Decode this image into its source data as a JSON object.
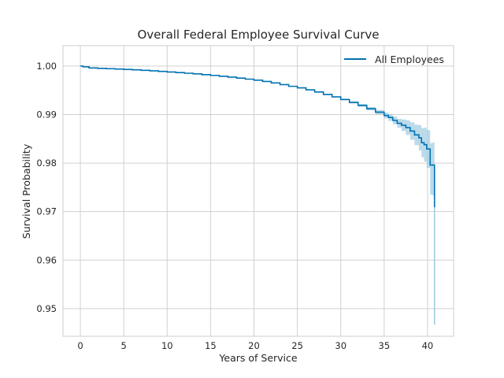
{
  "chart_data": {
    "type": "line",
    "title": "Overall Federal Employee Survival Curve",
    "xlabel": "Years of Service",
    "ylabel": "Survival Probability",
    "xlim": [
      -2,
      43
    ],
    "ylim": [
      0.9443,
      1.0042
    ],
    "xticks": [
      0,
      5,
      10,
      15,
      20,
      25,
      30,
      35,
      40
    ],
    "yticks": [
      0.95,
      0.96,
      0.97,
      0.98,
      0.99,
      1.0
    ],
    "ytick_labels": [
      "0.95",
      "0.96",
      "0.97",
      "0.98",
      "0.99",
      "1.00"
    ],
    "grid": true,
    "legend_position": "top-right",
    "colors": {
      "line": "#0072b2",
      "band": "#9ecae1",
      "grid": "#d0d0d0",
      "spine": "#cccccc",
      "text": "#262626"
    },
    "series": [
      {
        "name": "All Employees",
        "x": [
          0,
          0.3,
          1,
          2,
          3,
          4,
          5,
          6,
          7,
          8,
          9,
          10,
          11,
          12,
          13,
          14,
          15,
          16,
          17,
          18,
          19,
          20,
          21,
          22,
          23,
          24,
          25,
          26,
          27,
          28,
          29,
          30,
          31,
          32,
          33,
          34,
          35,
          35.5,
          36,
          36.5,
          37,
          37.5,
          38,
          38.5,
          39,
          39.3,
          39.6,
          39.9,
          40.3,
          40.6,
          40.8
        ],
        "y": [
          1.0,
          0.99985,
          0.9996,
          0.99952,
          0.99945,
          0.99938,
          0.9993,
          0.99922,
          0.99912,
          0.99902,
          0.9989,
          0.99878,
          0.99865,
          0.99852,
          0.99838,
          0.99823,
          0.99807,
          0.9979,
          0.99772,
          0.99752,
          0.9973,
          0.99708,
          0.99682,
          0.99652,
          0.99618,
          0.99582,
          0.9955,
          0.9951,
          0.99465,
          0.99415,
          0.99365,
          0.9931,
          0.9925,
          0.9919,
          0.9912,
          0.9905,
          0.9898,
          0.9894,
          0.9888,
          0.9882,
          0.9878,
          0.9873,
          0.9866,
          0.9858,
          0.9852,
          0.9842,
          0.9838,
          0.9829,
          0.9796,
          0.9796,
          0.9709
        ],
        "ci_lower": [
          1.0,
          0.99983,
          0.99958,
          0.9995,
          0.99943,
          0.99936,
          0.99928,
          0.9992,
          0.9991,
          0.999,
          0.99888,
          0.99876,
          0.99863,
          0.9985,
          0.99836,
          0.99821,
          0.99805,
          0.99788,
          0.9977,
          0.9975,
          0.99727,
          0.99705,
          0.99678,
          0.99648,
          0.99613,
          0.99577,
          0.99543,
          0.99502,
          0.99455,
          0.99403,
          0.9935,
          0.99292,
          0.99228,
          0.99162,
          0.99085,
          0.99005,
          0.9892,
          0.9887,
          0.988,
          0.9873,
          0.9866,
          0.9858,
          0.9848,
          0.9837,
          0.9826,
          0.9812,
          0.9803,
          0.979,
          0.9735,
          0.9733,
          0.9467
        ],
        "ci_upper": [
          1.0,
          0.99987,
          0.99962,
          0.99954,
          0.99947,
          0.9994,
          0.99932,
          0.99924,
          0.99914,
          0.99904,
          0.99892,
          0.9988,
          0.99867,
          0.99854,
          0.9984,
          0.99825,
          0.99809,
          0.99792,
          0.99774,
          0.99754,
          0.99733,
          0.99711,
          0.99686,
          0.99656,
          0.99623,
          0.99587,
          0.99557,
          0.99518,
          0.99475,
          0.99427,
          0.9938,
          0.99328,
          0.99272,
          0.99218,
          0.99155,
          0.99095,
          0.9904,
          0.9901,
          0.9896,
          0.9891,
          0.989,
          0.9888,
          0.9884,
          0.9879,
          0.9878,
          0.9872,
          0.9873,
          0.9868,
          0.9841,
          0.9843,
          0.9711
        ]
      }
    ]
  }
}
